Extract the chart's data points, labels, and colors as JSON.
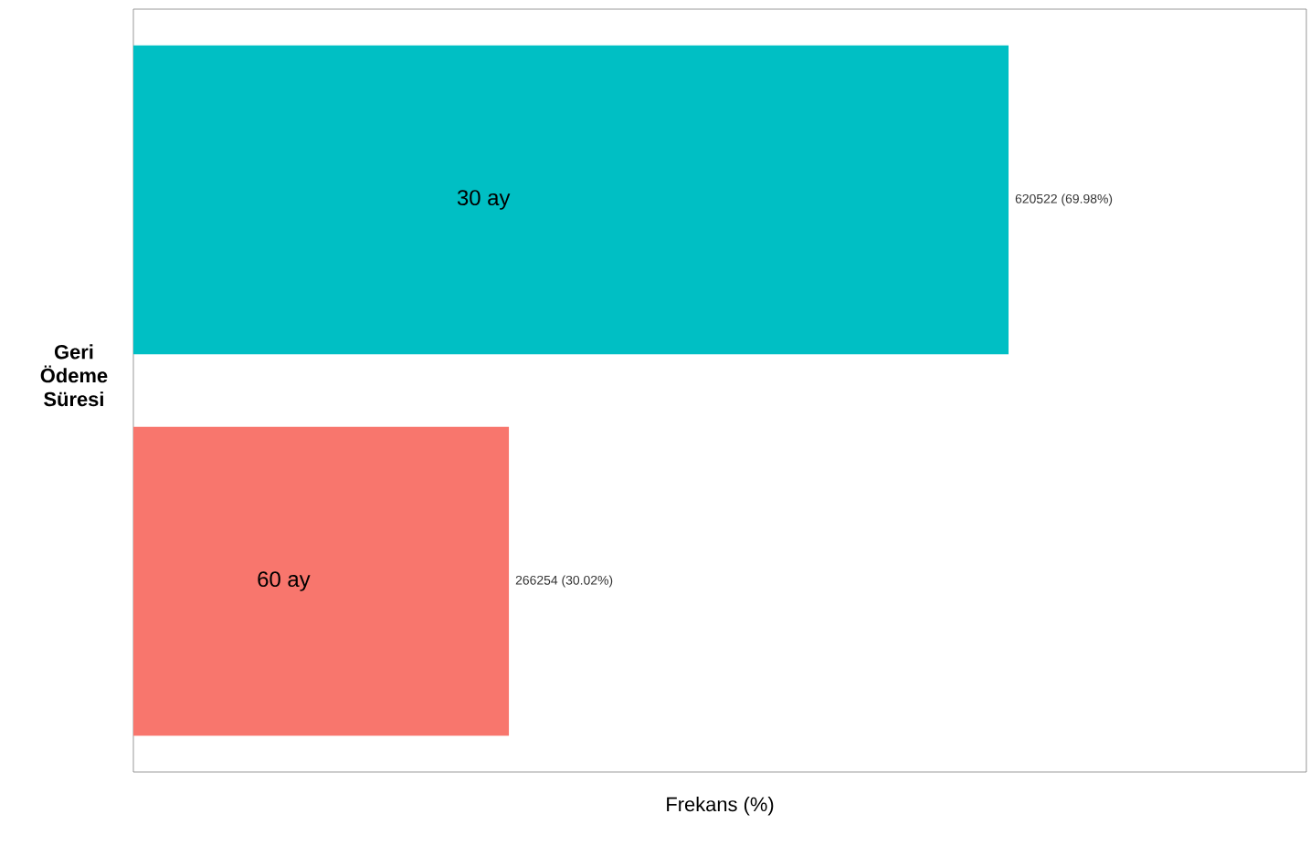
{
  "chart_data": {
    "type": "bar",
    "orientation": "horizontal",
    "xlabel": "Frekans (%)",
    "ylabel": "Geri Ödeme Süresi",
    "categories": [
      "30 ay",
      "60 ay"
    ],
    "values": [
      620522,
      266254
    ],
    "colors": [
      "#00bfc4",
      "#f8766d"
    ],
    "value_labels": [
      "620522 (69.98%)",
      "266254 (30.02%)"
    ]
  }
}
